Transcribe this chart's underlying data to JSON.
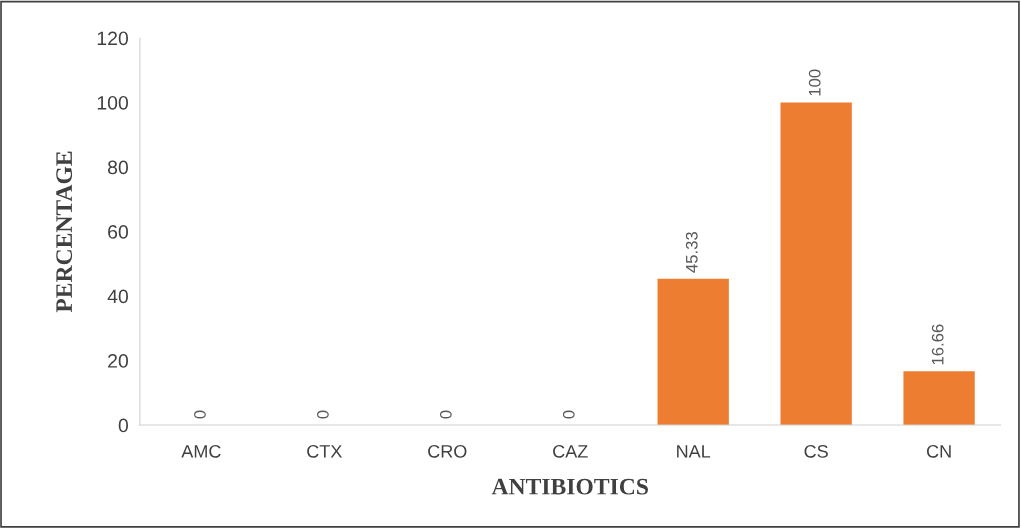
{
  "chart_data": {
    "type": "bar",
    "xlabel": "ANTIBIOTICS",
    "ylabel": "PERCENTAGE",
    "categories": [
      "AMC",
      "CTX",
      "CRO",
      "CAZ",
      "NAL",
      "CS",
      "CN"
    ],
    "values": [
      0,
      0,
      0,
      0,
      45.33,
      100,
      16.66
    ],
    "color": "#ed7d31",
    "ylim": [
      0,
      120
    ],
    "yticks": [
      0,
      20,
      40,
      60,
      80,
      100,
      120
    ],
    "data_labels": true,
    "grid": false,
    "legend": false
  }
}
